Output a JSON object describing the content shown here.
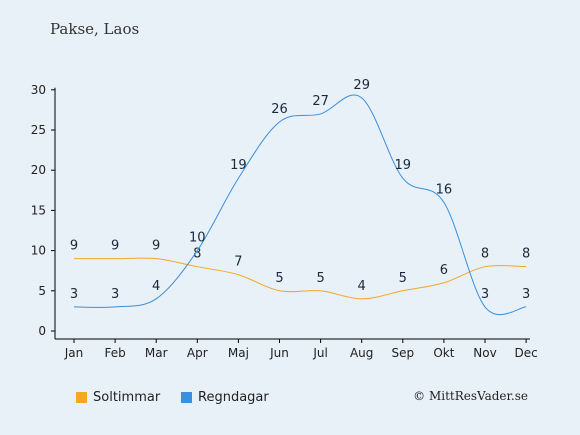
{
  "header": {
    "title": "Pakse, Laos"
  },
  "footer": {
    "copyright": "© MittResVader.se"
  },
  "chart_data": {
    "type": "line",
    "categories": [
      "Jan",
      "Feb",
      "Mar",
      "Apr",
      "Maj",
      "Jun",
      "Jul",
      "Aug",
      "Sep",
      "Okt",
      "Nov",
      "Dec"
    ],
    "series": [
      {
        "name": "Soltimmar",
        "color": "#f5a623",
        "values": [
          9,
          9,
          9,
          8,
          7,
          5,
          5,
          4,
          5,
          6,
          8,
          8
        ]
      },
      {
        "name": "Regndagar",
        "color": "#3a8fe0",
        "values": [
          3,
          3,
          4,
          10,
          19,
          26,
          27,
          29,
          19,
          16,
          3,
          3
        ]
      }
    ],
    "ylim": [
      0,
      30
    ],
    "yticks": [
      0,
      5,
      10,
      15,
      20,
      25,
      30
    ],
    "grid": false,
    "legend_position": "bottom-left"
  }
}
